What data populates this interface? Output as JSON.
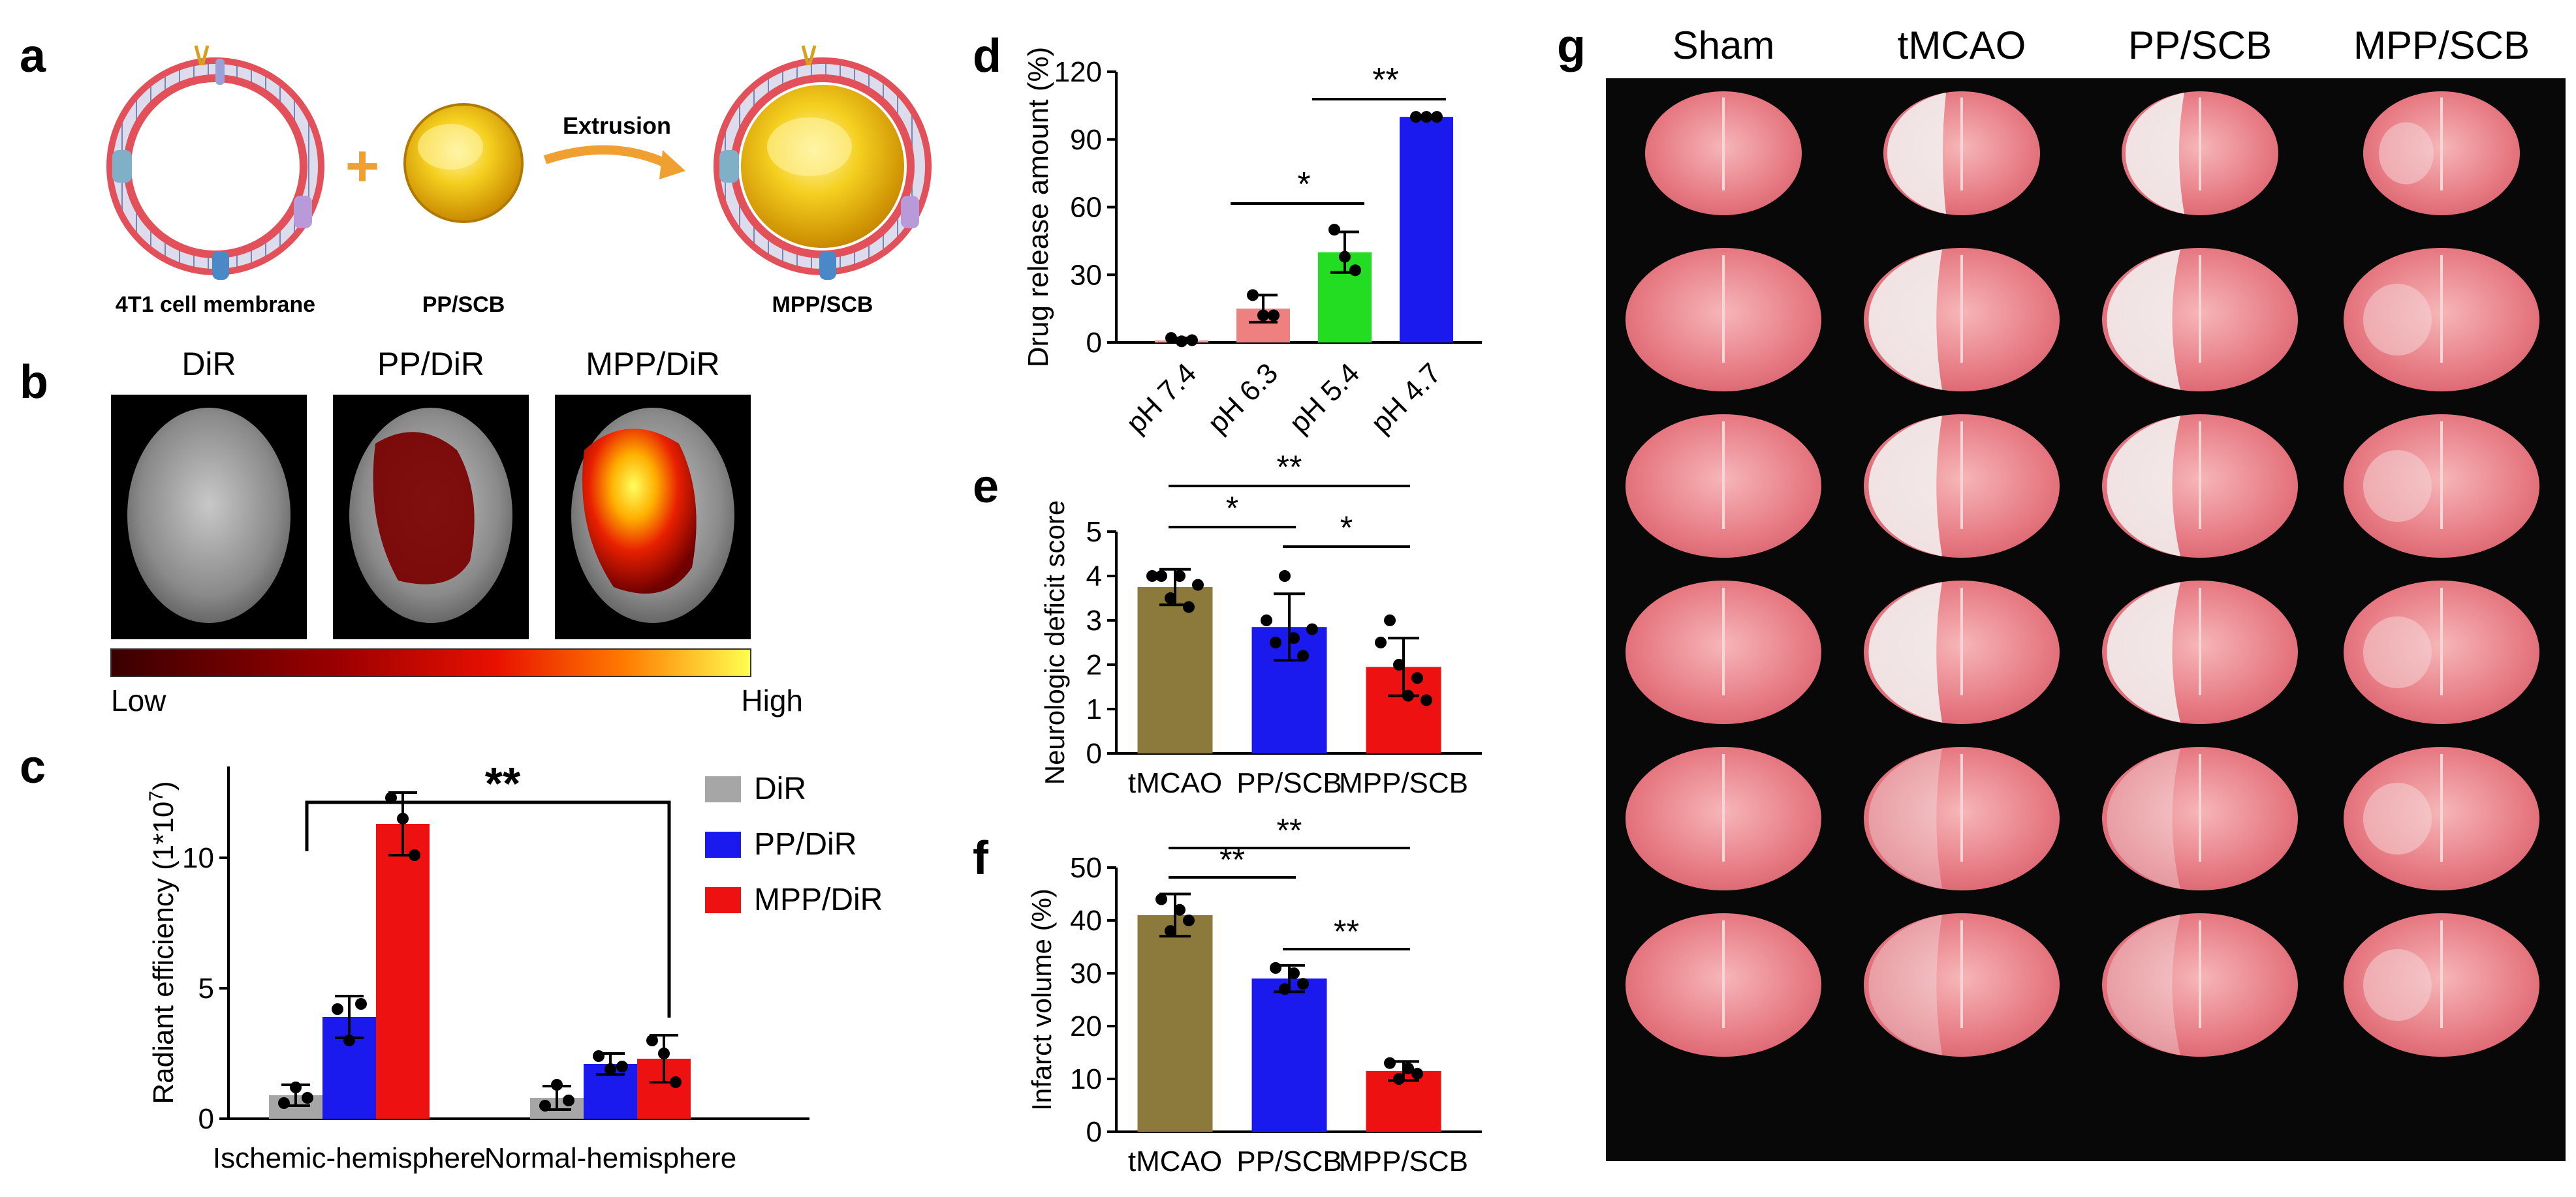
{
  "panel_letters": {
    "a": "a",
    "b": "b",
    "c": "c",
    "d": "d",
    "e": "e",
    "f": "f",
    "g": "g"
  },
  "panel_a": {
    "label_membrane": "4T1 cell membrane",
    "label_core": "PP/SCB",
    "label_product": "MPP/SCB",
    "arrow_label": "Extrusion",
    "plus": "+",
    "colors": {
      "lipid_head": "#e2505a",
      "core": "#f2c21a",
      "arrow": "#f0a030"
    }
  },
  "panel_b": {
    "titles": [
      "DiR",
      "PP/DiR",
      "MPP/DiR"
    ],
    "colorbar_low": "Low",
    "colorbar_high": "High"
  },
  "chart_data": [
    {
      "panel": "c",
      "type": "bar",
      "categories": [
        "Ischemic-hemisphere",
        "Normal-hemisphere"
      ],
      "ylabel": "Radiant efficiency (1*10",
      "ylabel_exp": "7",
      "ylabel_close": ")",
      "ylim": [
        0,
        13.5
      ],
      "yticks": [
        "0",
        "5",
        "10"
      ],
      "legend": "top-right",
      "significance": "**",
      "series": [
        {
          "name": "DiR",
          "color": "#a6a6a6",
          "values": [
            0.9,
            0.8
          ],
          "err": [
            0.4,
            0.45
          ],
          "points": [
            [
              0.6,
              1.2,
              0.8
            ],
            [
              0.5,
              1.3,
              0.7
            ]
          ]
        },
        {
          "name": "PP/DiR",
          "color": "#1a1aee",
          "values": [
            3.9,
            2.1
          ],
          "err": [
            0.8,
            0.4
          ],
          "points": [
            [
              4.2,
              3.0,
              4.4
            ],
            [
              2.4,
              1.9,
              2.0
            ]
          ]
        },
        {
          "name": "MPP/DiR",
          "color": "#ee1111",
          "values": [
            11.3,
            2.3
          ],
          "err": [
            1.2,
            0.9
          ],
          "points": [
            [
              12.3,
              11.5,
              10.1
            ],
            [
              3.0,
              2.5,
              1.4
            ]
          ]
        }
      ]
    },
    {
      "panel": "d",
      "type": "bar",
      "categories": [
        "pH 7.4",
        "pH 6.3",
        "pH 5.4",
        "pH 4.7"
      ],
      "ylabel": "Drug release amount (%)",
      "ylim": [
        0,
        120
      ],
      "yticks": [
        "0",
        "30",
        "60",
        "90",
        "120"
      ],
      "values": [
        1,
        15,
        40,
        100
      ],
      "err": [
        1,
        6,
        9,
        0.5
      ],
      "colors": [
        "#f0a0a0",
        "#ee8080",
        "#22dd22",
        "#1a1aee"
      ],
      "points": [
        [
          2,
          0.5,
          1
        ],
        [
          21,
          12,
          12
        ],
        [
          50,
          38,
          32
        ],
        [
          100,
          100,
          100
        ]
      ],
      "significance": [
        {
          "from": 1,
          "to": 2,
          "label": "*"
        },
        {
          "from": 2,
          "to": 3,
          "label": "**"
        }
      ]
    },
    {
      "panel": "e",
      "type": "bar",
      "categories": [
        "tMCAO",
        "PP/SCB",
        "MPP/SCB"
      ],
      "ylabel": "Neurologic deficit score",
      "ylim": [
        0,
        5
      ],
      "yticks": [
        "0",
        "1",
        "2",
        "3",
        "4",
        "5"
      ],
      "values": [
        3.75,
        2.85,
        1.95
      ],
      "err": [
        0.4,
        0.75,
        0.65
      ],
      "colors": [
        "#8c7a3c",
        "#1a1aee",
        "#ee1111"
      ],
      "points": [
        [
          4,
          4,
          3.5,
          4,
          3.3,
          3.8
        ],
        [
          3,
          2.5,
          4,
          2.6,
          2.2,
          2.8
        ],
        [
          2.5,
          3,
          2,
          1.3,
          1.7,
          1.2
        ]
      ],
      "significance": [
        {
          "from": 0,
          "to": 1,
          "label": "*",
          "level": 0
        },
        {
          "from": 1,
          "to": 2,
          "label": "*",
          "level": 0
        },
        {
          "from": 0,
          "to": 2,
          "label": "**",
          "level": 1
        }
      ]
    },
    {
      "panel": "f",
      "type": "bar",
      "categories": [
        "tMCAO",
        "PP/SCB",
        "MPP/SCB"
      ],
      "ylabel": "Infarct volume (%)",
      "ylim": [
        0,
        50
      ],
      "yticks": [
        "0",
        "10",
        "20",
        "30",
        "40",
        "50"
      ],
      "values": [
        41,
        29,
        11.5
      ],
      "err": [
        4,
        2.5,
        1.8
      ],
      "colors": [
        "#8c7a3c",
        "#1a1aee",
        "#ee1111"
      ],
      "points": [
        [
          44,
          38,
          42,
          40
        ],
        [
          31,
          27,
          30,
          28
        ],
        [
          13,
          10,
          12,
          11
        ]
      ],
      "significance": [
        {
          "from": 0,
          "to": 1,
          "label": "**",
          "level": 0
        },
        {
          "from": 1,
          "to": 2,
          "label": "**",
          "level": 0
        },
        {
          "from": 0,
          "to": 2,
          "label": "**",
          "level": 1
        }
      ]
    }
  ],
  "panel_g": {
    "column_titles": [
      "Sham",
      "tMCAO",
      "PP/SCB",
      "MPP/SCB"
    ],
    "rows": 6
  }
}
